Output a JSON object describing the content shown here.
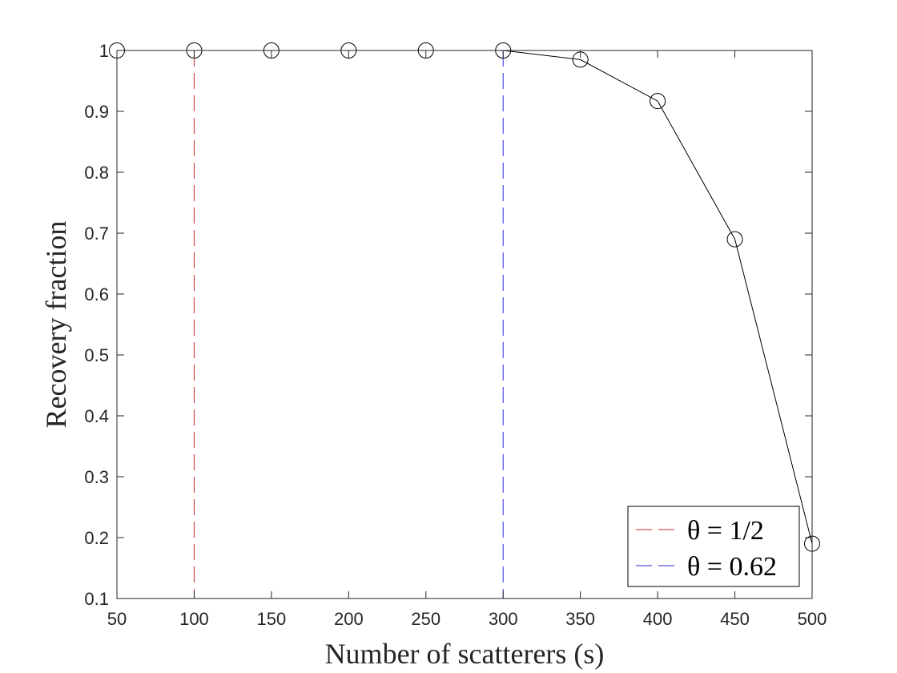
{
  "chart_data": {
    "type": "line",
    "title": "",
    "xlabel": "Number of scatterers (s)",
    "ylabel": "Recovery fraction",
    "xlim": [
      50,
      500
    ],
    "ylim": [
      0.1,
      1
    ],
    "xticks": [
      50,
      100,
      150,
      200,
      250,
      300,
      350,
      400,
      450,
      500
    ],
    "xtick_labels": [
      "50",
      "100",
      "150",
      "200",
      "250",
      "300",
      "350",
      "400",
      "450",
      "500"
    ],
    "yticks": [
      0.1,
      0.2,
      0.3,
      0.4,
      0.5,
      0.6,
      0.7,
      0.8,
      0.9,
      1
    ],
    "ytick_labels": [
      "0.1",
      "0.2",
      "0.3",
      "0.4",
      "0.5",
      "0.6",
      "0.7",
      "0.8",
      "0.9",
      "1"
    ],
    "grid": false,
    "series": [
      {
        "x": [
          50,
          100,
          150,
          200,
          250,
          300,
          350,
          400,
          450,
          500
        ],
        "y": [
          1,
          1,
          1,
          1,
          1,
          1,
          0.985,
          0.917,
          0.69,
          0.19
        ],
        "color": "#000000",
        "marker": "circle-open"
      }
    ],
    "vlines": [
      {
        "x": 100,
        "color": "#d62728",
        "style": "dashed"
      },
      {
        "x": 300,
        "color": "#2a2ad6",
        "style": "dashed"
      }
    ],
    "legend": {
      "placement": "bottom-right",
      "entries": [
        {
          "text": "θ = 1/2",
          "color": "#d62728"
        },
        {
          "text": "θ = 0.62",
          "color": "#2a2ad6"
        }
      ]
    }
  }
}
